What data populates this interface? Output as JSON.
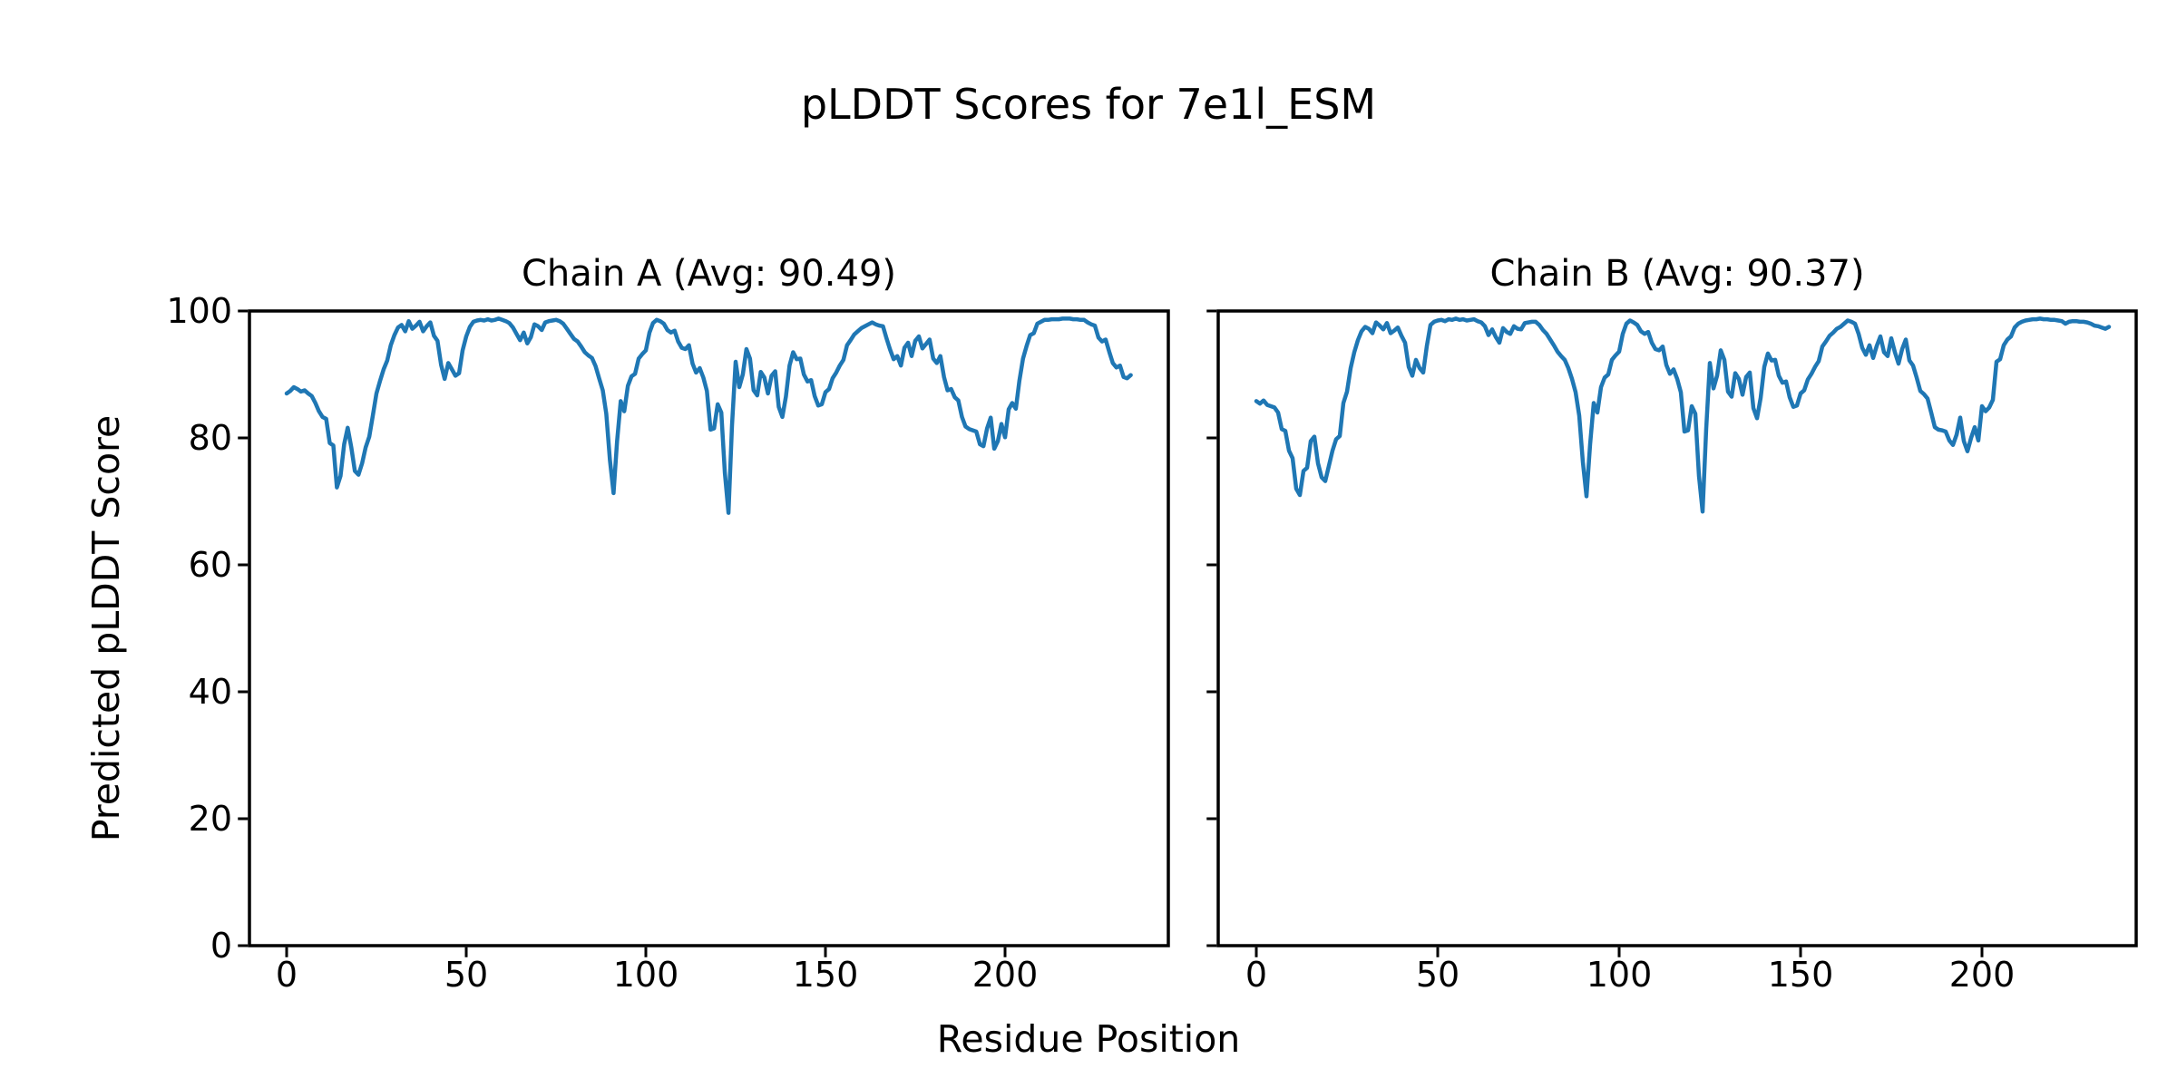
{
  "figure": {
    "suptitle": "pLDDT Scores for 7e1l_ESM",
    "xlabel": "Residue Position",
    "ylabel": "Predicted pLDDT Score",
    "background_color": "#ffffff",
    "text_color": "#000000",
    "spine_color": "#000000"
  },
  "chart_data": [
    {
      "type": "line",
      "chain": "a",
      "title": "Chain A (Avg: 90.49)",
      "avg": 90.49,
      "line_color": "#1f77b4",
      "xlabel": "Residue Position",
      "ylabel": "Predicted pLDDT Score",
      "x_ticks": [
        0,
        50,
        100,
        150,
        200
      ],
      "y_ticks": [
        0,
        20,
        40,
        60,
        80,
        100
      ],
      "ylim": [
        0,
        100
      ],
      "x_start": 0,
      "x_step": 1,
      "values": [
        87.0,
        87.4,
        88.0,
        87.7,
        87.3,
        87.5,
        87.0,
        86.6,
        85.5,
        84.2,
        83.3,
        83.0,
        79.2,
        78.8,
        72.2,
        74.0,
        79.0,
        81.6,
        78.5,
        74.8,
        74.2,
        76.0,
        78.5,
        80.2,
        83.5,
        87.0,
        89.0,
        90.8,
        92.2,
        94.6,
        96.2,
        97.4,
        97.8,
        96.8,
        98.4,
        97.2,
        97.7,
        98.3,
        96.8,
        97.6,
        98.2,
        96.1,
        95.3,
        91.5,
        89.3,
        91.8,
        90.8,
        89.8,
        90.2,
        93.8,
        96.0,
        97.5,
        98.3,
        98.5,
        98.6,
        98.5,
        98.7,
        98.5,
        98.6,
        98.8,
        98.6,
        98.4,
        98.1,
        97.4,
        96.4,
        95.4,
        96.6,
        94.9,
        95.9,
        97.9,
        97.6,
        97.0,
        98.2,
        98.4,
        98.5,
        98.6,
        98.4,
        98.0,
        97.2,
        96.4,
        95.6,
        95.2,
        94.4,
        93.5,
        93.0,
        92.6,
        91.3,
        89.4,
        87.5,
        83.8,
        76.5,
        71.3,
        79.5,
        85.8,
        84.2,
        88.2,
        89.7,
        90.1,
        92.5,
        93.2,
        93.8,
        96.6,
        98.1,
        98.6,
        98.4,
        98.0,
        97.0,
        96.6,
        96.9,
        95.2,
        94.2,
        94.0,
        94.6,
        91.7,
        90.3,
        91.0,
        89.5,
        87.4,
        81.3,
        81.5,
        85.3,
        84.0,
        74.5,
        68.2,
        82.0,
        92.0,
        88.0,
        90.0,
        94.0,
        92.5,
        87.5,
        86.7,
        90.4,
        89.5,
        87.0,
        89.8,
        90.5,
        84.9,
        83.3,
        86.5,
        91.4,
        93.5,
        92.4,
        92.5,
        90.0,
        88.9,
        89.1,
        86.6,
        85.1,
        85.3,
        87.2,
        87.7,
        89.4,
        90.3,
        91.4,
        92.3,
        94.6,
        95.4,
        96.3,
        96.8,
        97.3,
        97.6,
        97.9,
        98.2,
        97.9,
        97.7,
        97.6,
        95.7,
        93.9,
        92.4,
        92.9,
        91.4,
        94.2,
        95.0,
        92.9,
        95.3,
        96.0,
        94.1,
        94.8,
        95.5,
        92.5,
        91.8,
        92.9,
        89.6,
        87.5,
        87.7,
        86.4,
        85.9,
        83.3,
        81.8,
        81.4,
        81.2,
        81.0,
        79.0,
        78.7,
        81.5,
        83.2,
        78.3,
        79.5,
        82.2,
        80.1,
        84.5,
        85.5,
        84.6,
        89.0,
        92.5,
        94.5,
        96.2,
        96.5,
        98.0,
        98.3,
        98.6,
        98.6,
        98.7,
        98.7,
        98.7,
        98.8,
        98.8,
        98.8,
        98.7,
        98.7,
        98.6,
        98.6,
        98.2,
        97.9,
        97.7,
        95.8,
        95.2,
        95.5,
        93.6,
        91.8,
        91.1,
        91.4,
        89.6,
        89.4,
        89.9
      ]
    },
    {
      "type": "line",
      "chain": "b",
      "title": "Chain B (Avg: 90.37)",
      "avg": 90.37,
      "line_color": "#1f77b4",
      "xlabel": "Residue Position",
      "ylabel": "Predicted pLDDT Score",
      "x_ticks": [
        0,
        50,
        100,
        150,
        200
      ],
      "y_ticks": [
        0,
        20,
        40,
        60,
        80,
        100
      ],
      "ylim": [
        0,
        100
      ],
      "x_start": 0,
      "x_step": 1,
      "values": [
        85.8,
        85.4,
        85.9,
        85.2,
        85.0,
        84.8,
        84.0,
        81.4,
        81.1,
        78.0,
        76.8,
        72.0,
        71.0,
        74.8,
        75.3,
        79.5,
        80.2,
        76.0,
        73.8,
        73.2,
        75.6,
        78.0,
        79.8,
        80.3,
        85.5,
        87.3,
        91.0,
        93.5,
        95.4,
        96.8,
        97.5,
        97.2,
        96.5,
        98.2,
        97.7,
        97.1,
        98.1,
        96.5,
        96.9,
        97.4,
        96.1,
        95.0,
        91.2,
        89.8,
        92.3,
        91.0,
        90.3,
        94.5,
        97.8,
        98.3,
        98.5,
        98.6,
        98.4,
        98.7,
        98.6,
        98.8,
        98.6,
        98.7,
        98.5,
        98.6,
        98.7,
        98.4,
        98.2,
        97.6,
        96.2,
        97.1,
        95.9,
        95.0,
        97.3,
        96.7,
        96.4,
        97.6,
        97.2,
        97.1,
        98.1,
        98.2,
        98.3,
        98.3,
        97.8,
        97.0,
        96.4,
        95.5,
        94.6,
        93.6,
        92.9,
        92.3,
        91.0,
        89.3,
        87.2,
        83.5,
        76.2,
        70.8,
        79.0,
        85.5,
        84.0,
        88.0,
        89.5,
        90.0,
        92.3,
        93.0,
        93.6,
        96.4,
        98.0,
        98.5,
        98.2,
        97.8,
        96.8,
        96.4,
        96.7,
        95.0,
        94.0,
        93.8,
        94.4,
        91.5,
        90.1,
        90.8,
        89.3,
        87.2,
        81.0,
        81.2,
        85.0,
        83.8,
        74.0,
        68.4,
        81.5,
        91.8,
        87.8,
        89.8,
        93.8,
        92.3,
        87.3,
        86.5,
        90.2,
        89.3,
        86.8,
        89.6,
        90.3,
        84.7,
        83.1,
        86.3,
        91.2,
        93.3,
        92.2,
        92.3,
        89.8,
        88.7,
        88.9,
        86.4,
        84.9,
        85.1,
        87.0,
        87.5,
        89.2,
        90.1,
        91.2,
        92.1,
        94.4,
        95.2,
        96.1,
        96.6,
        97.2,
        97.5,
        98.0,
        98.5,
        98.3,
        98.0,
        96.4,
        94.2,
        93.1,
        94.6,
        92.6,
        94.5,
        96.0,
        93.5,
        92.9,
        95.7,
        93.5,
        91.7,
        94.0,
        95.5,
        92.2,
        91.4,
        89.5,
        87.4,
        86.9,
        86.2,
        84.0,
        81.7,
        81.3,
        81.2,
        81.0,
        79.6,
        78.9,
        80.5,
        83.2,
        79.5,
        77.9,
        80.0,
        81.7,
        79.6,
        85.0,
        84.2,
        84.8,
        86.0,
        92.0,
        92.4,
        94.6,
        95.5,
        96.0,
        97.4,
        98.0,
        98.3,
        98.5,
        98.6,
        98.7,
        98.7,
        98.8,
        98.7,
        98.7,
        98.6,
        98.6,
        98.5,
        98.4,
        98.0,
        98.3,
        98.4,
        98.4,
        98.3,
        98.3,
        98.2,
        98.0,
        97.7,
        97.6,
        97.4,
        97.2,
        97.5
      ]
    }
  ]
}
